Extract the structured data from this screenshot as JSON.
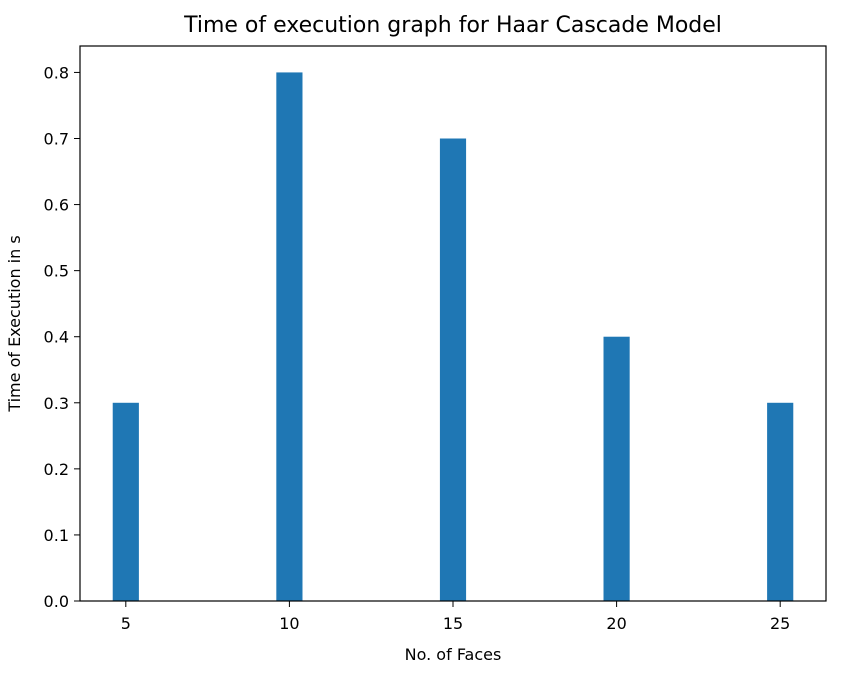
{
  "chart_data": {
    "type": "bar",
    "title": "Time of execution graph for Haar Cascade Model",
    "xlabel": "No. of Faces",
    "ylabel": "Time of Execution in s",
    "x": [
      5,
      10,
      15,
      20,
      25
    ],
    "values": [
      0.3,
      0.8,
      0.7,
      0.4,
      0.3
    ],
    "bar_width": 0.8,
    "xlim": [
      3.6,
      26.4
    ],
    "ylim": [
      0,
      0.84
    ],
    "xticks": [
      5,
      10,
      15,
      20,
      25
    ],
    "xtick_labels": [
      "5",
      "10",
      "15",
      "20",
      "25"
    ],
    "yticks": [
      0.0,
      0.1,
      0.2,
      0.3,
      0.4,
      0.5,
      0.6,
      0.7,
      0.8
    ],
    "ytick_labels": [
      "0.0",
      "0.1",
      "0.2",
      "0.3",
      "0.4",
      "0.5",
      "0.6",
      "0.7",
      "0.8"
    ],
    "grid": false,
    "bar_color": "#1f77b4"
  }
}
